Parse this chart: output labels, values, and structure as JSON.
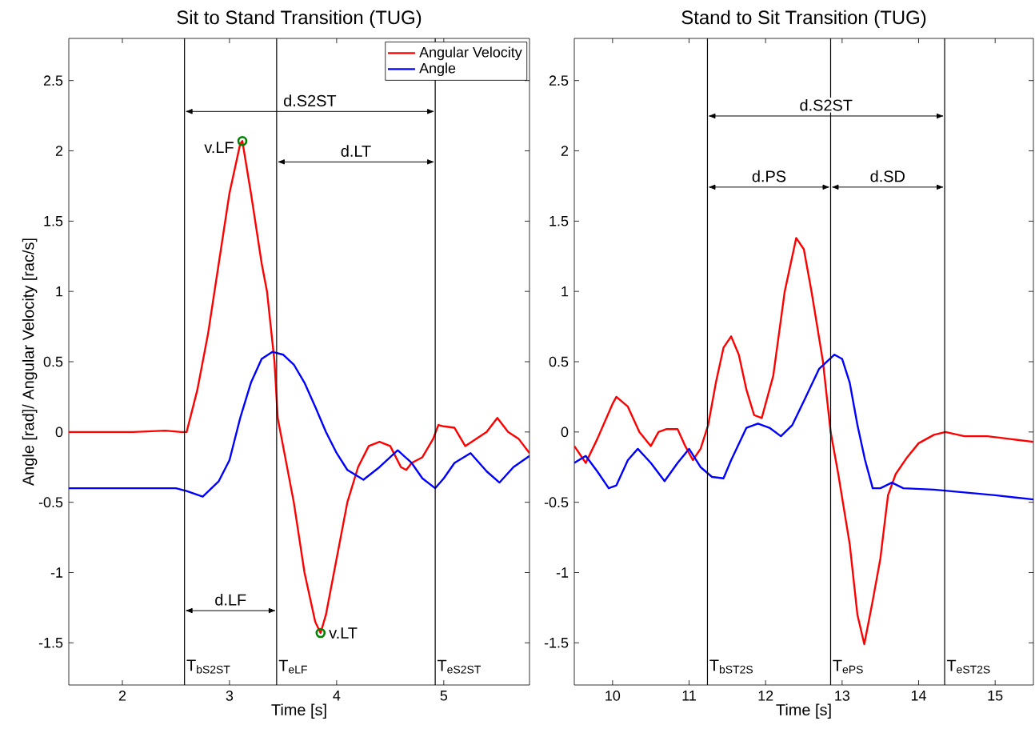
{
  "chart_data": [
    {
      "type": "line",
      "title": "Sit to Stand Transition (TUG)",
      "xlabel": "Time [s]",
      "ylabel": "Angle [rad]/ Angular Velocity [rac/s]",
      "xlim": [
        1.5,
        5.8
      ],
      "ylim": [
        -1.8,
        2.8
      ],
      "xticks": [
        2,
        3,
        4,
        5
      ],
      "yticks": [
        -1.5,
        -1,
        -0.5,
        0,
        0.5,
        1,
        1.5,
        2,
        2.5
      ],
      "legend": "top right",
      "series": [
        {
          "name": "Angular Velocity",
          "color": "#ff0000",
          "x": [
            1.5,
            1.8,
            2.1,
            2.4,
            2.55,
            2.6,
            2.7,
            2.8,
            2.9,
            3.0,
            3.1,
            3.12,
            3.2,
            3.3,
            3.35,
            3.42,
            3.45,
            3.5,
            3.6,
            3.7,
            3.8,
            3.85,
            3.9,
            4.0,
            4.1,
            4.2,
            4.3,
            4.4,
            4.5,
            4.6,
            4.65,
            4.7,
            4.8,
            4.9,
            4.95,
            5.0,
            5.1,
            5.2,
            5.3,
            5.4,
            5.5,
            5.6,
            5.7,
            5.8
          ],
          "values": [
            0.0,
            0.0,
            0.0,
            0.01,
            0.0,
            0.0,
            0.3,
            0.7,
            1.2,
            1.7,
            2.05,
            2.07,
            1.7,
            1.2,
            1.0,
            0.5,
            0.1,
            -0.1,
            -0.5,
            -1.0,
            -1.35,
            -1.43,
            -1.3,
            -0.9,
            -0.5,
            -0.25,
            -0.1,
            -0.07,
            -0.1,
            -0.25,
            -0.27,
            -0.22,
            -0.18,
            -0.05,
            0.05,
            0.04,
            0.03,
            -0.1,
            -0.05,
            0.0,
            0.1,
            0.0,
            -0.05,
            -0.15
          ]
        },
        {
          "name": "Angle",
          "color": "#0000ff",
          "x": [
            1.5,
            2.0,
            2.5,
            2.6,
            2.75,
            2.9,
            3.0,
            3.1,
            3.2,
            3.3,
            3.4,
            3.5,
            3.6,
            3.7,
            3.8,
            3.9,
            4.0,
            4.1,
            4.25,
            4.4,
            4.57,
            4.7,
            4.8,
            4.92,
            5.0,
            5.1,
            5.25,
            5.4,
            5.52,
            5.65,
            5.8
          ],
          "values": [
            -0.4,
            -0.4,
            -0.4,
            -0.42,
            -0.46,
            -0.35,
            -0.2,
            0.1,
            0.35,
            0.52,
            0.57,
            0.55,
            0.48,
            0.35,
            0.18,
            0.0,
            -0.15,
            -0.27,
            -0.34,
            -0.25,
            -0.13,
            -0.22,
            -0.33,
            -0.4,
            -0.33,
            -0.22,
            -0.15,
            -0.28,
            -0.36,
            -0.25,
            -0.17
          ]
        },
        {
          "type": "scatter",
          "marker": "circle",
          "color": "#008000",
          "x": [
            3.12,
            3.85
          ],
          "values": [
            2.07,
            -1.43
          ]
        }
      ],
      "ref_lines": [
        {
          "axis": "x",
          "value": 2.58,
          "label": "T$_{bS2ST}$"
        },
        {
          "axis": "x",
          "value": 3.44,
          "label": "T$_{eLF}$"
        },
        {
          "axis": "x",
          "value": 4.92,
          "label": "T$_{eS2ST}$"
        }
      ],
      "annotations": [
        "d.S2ST",
        "d.LT",
        "d.LF",
        {
          "text": "v.LF",
          "x": 3.12,
          "y": 2.07
        },
        {
          "text": "v.LT",
          "x": 3.85,
          "y": -1.43
        }
      ]
    },
    {
      "type": "line",
      "title": "Stand to Sit Transition (TUG)",
      "xlabel": "Time [s]",
      "xlim": [
        9.5,
        15.5
      ],
      "ylim": [
        -1.8,
        2.8
      ],
      "xticks": [
        10,
        11,
        12,
        13,
        14,
        15
      ],
      "yticks": [
        -1.5,
        -1,
        -0.5,
        0,
        0.5,
        1,
        1.5,
        2,
        2.5
      ],
      "series": [
        {
          "color": "#ff0000",
          "x": [
            9.5,
            9.65,
            9.8,
            10.0,
            10.05,
            10.2,
            10.35,
            10.5,
            10.6,
            10.7,
            10.85,
            10.95,
            11.05,
            11.15,
            11.25,
            11.35,
            11.45,
            11.55,
            11.65,
            11.75,
            11.85,
            11.95,
            12.1,
            12.25,
            12.4,
            12.5,
            12.6,
            12.75,
            12.85,
            12.95,
            13.1,
            13.2,
            13.29,
            13.4,
            13.5,
            13.6,
            13.7,
            13.85,
            14.0,
            14.2,
            14.35,
            14.6,
            14.9,
            15.2,
            15.5
          ],
          "values": [
            -0.1,
            -0.22,
            -0.05,
            0.2,
            0.25,
            0.18,
            0.0,
            -0.1,
            0.0,
            0.02,
            0.02,
            -0.1,
            -0.2,
            -0.12,
            0.05,
            0.35,
            0.6,
            0.68,
            0.55,
            0.3,
            0.12,
            0.1,
            0.4,
            1.0,
            1.38,
            1.3,
            1.0,
            0.5,
            0.0,
            -0.3,
            -0.8,
            -1.3,
            -1.51,
            -1.2,
            -0.9,
            -0.45,
            -0.3,
            -0.18,
            -0.08,
            -0.02,
            0.0,
            -0.03,
            -0.03,
            -0.05,
            -0.07
          ]
        },
        {
          "color": "#0000ff",
          "x": [
            9.5,
            9.65,
            9.8,
            9.95,
            10.05,
            10.2,
            10.33,
            10.5,
            10.68,
            10.85,
            11.0,
            11.15,
            11.3,
            11.45,
            11.55,
            11.75,
            11.9,
            12.05,
            12.2,
            12.35,
            12.5,
            12.7,
            12.9,
            13.0,
            13.1,
            13.2,
            13.3,
            13.4,
            13.5,
            13.65,
            13.8,
            14.2,
            14.6,
            15.0,
            15.5
          ],
          "values": [
            -0.22,
            -0.17,
            -0.28,
            -0.4,
            -0.38,
            -0.2,
            -0.12,
            -0.22,
            -0.35,
            -0.22,
            -0.12,
            -0.25,
            -0.32,
            -0.33,
            -0.2,
            0.03,
            0.06,
            0.03,
            -0.03,
            0.05,
            0.22,
            0.45,
            0.55,
            0.52,
            0.35,
            0.05,
            -0.2,
            -0.4,
            -0.4,
            -0.36,
            -0.4,
            -0.41,
            -0.43,
            -0.45,
            -0.48
          ]
        }
      ],
      "ref_lines": [
        {
          "axis": "x",
          "value": 11.24,
          "label": "T$_{bST2S}$"
        },
        {
          "axis": "x",
          "value": 12.85,
          "label": "T$_{ePS}$"
        },
        {
          "axis": "x",
          "value": 14.34,
          "label": "T$_{eST2S}$"
        }
      ],
      "annotations": [
        "d.S2ST",
        "d.PS",
        "d.SD"
      ]
    }
  ]
}
